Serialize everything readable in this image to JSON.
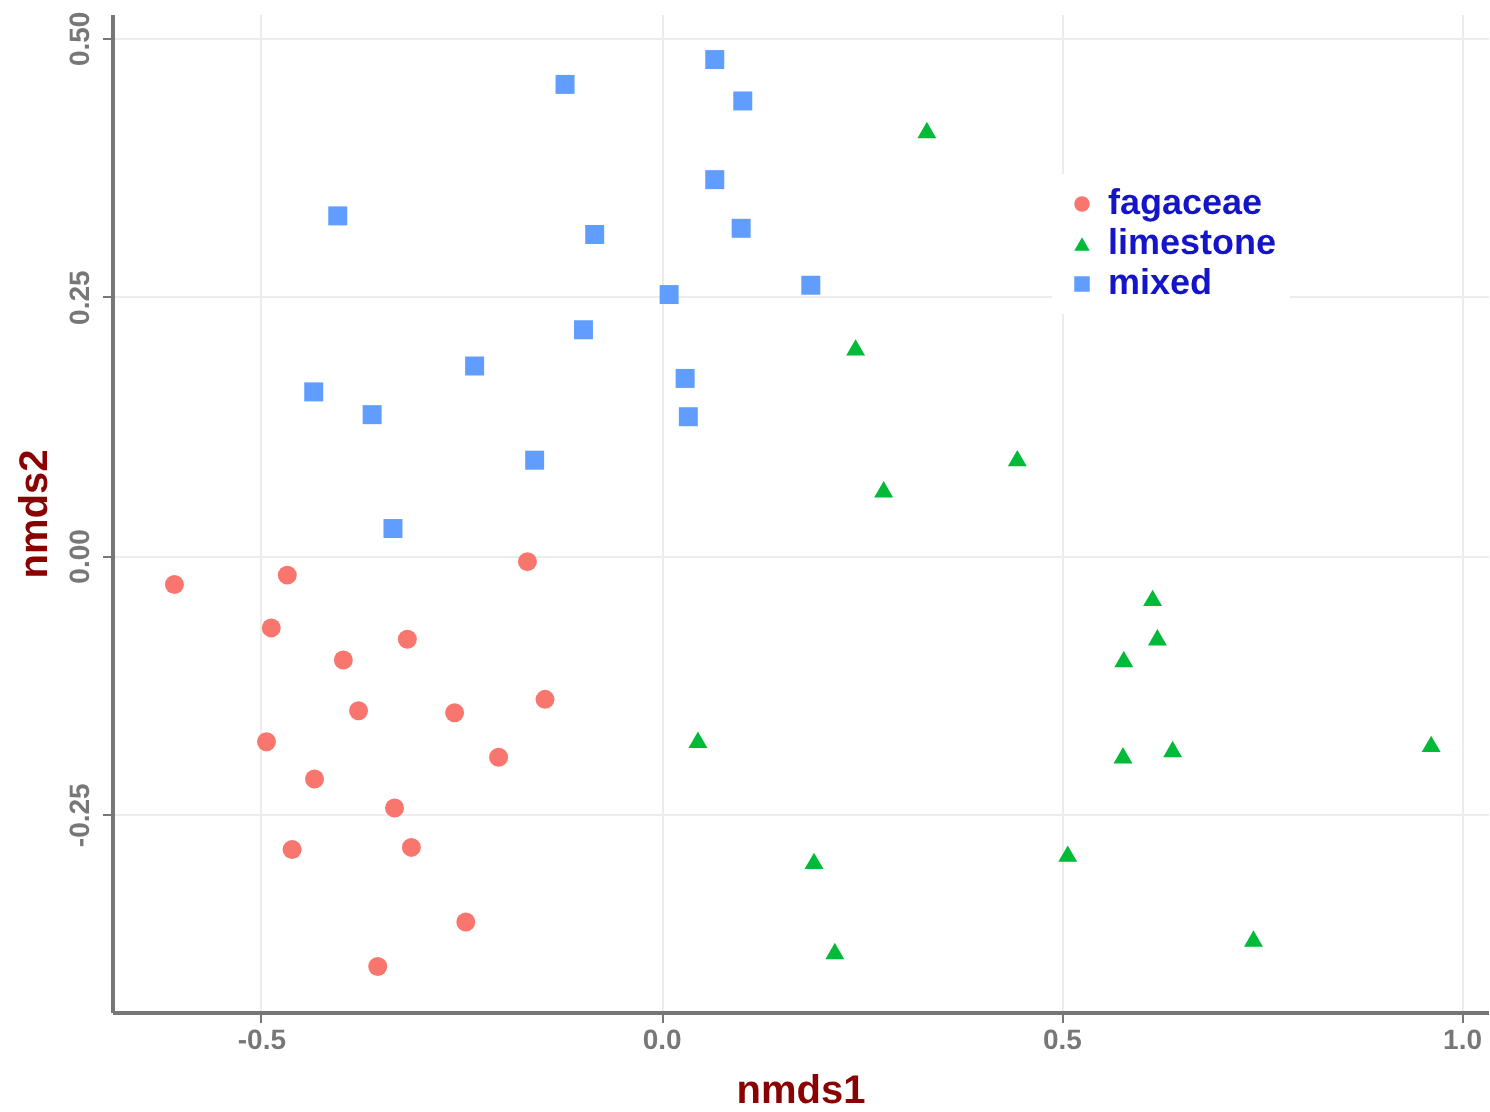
{
  "chart_data": {
    "type": "scatter",
    "xlabel": "nmds1",
    "ylabel": "nmds2",
    "xlim": [
      -0.686,
      1.033
    ],
    "ylim": [
      -0.441,
      0.523
    ],
    "xticks": [
      {
        "value": -0.5,
        "label": "-0.5"
      },
      {
        "value": 0,
        "label": "0.0"
      },
      {
        "value": 0.5,
        "label": "0.5"
      },
      {
        "value": 1,
        "label": "1.0"
      }
    ],
    "yticks": [
      {
        "value": -0.25,
        "label": "-0.25"
      },
      {
        "value": 0,
        "label": "0.00"
      },
      {
        "value": 0.25,
        "label": "0.25"
      },
      {
        "value": 0.5,
        "label": "0.50"
      }
    ],
    "grid": true,
    "legend": "top right",
    "series": [
      {
        "name": "fagaceae",
        "color": "#f8766d",
        "marker": "circle",
        "x": [
          -0.608,
          -0.467,
          -0.167,
          -0.487,
          -0.317,
          -0.397,
          -0.378,
          -0.258,
          -0.145,
          -0.493,
          -0.203,
          -0.433,
          -0.333,
          -0.461,
          -0.312,
          -0.244,
          -0.354
        ],
        "values": [
          -0.028,
          -0.019,
          -0.006,
          -0.07,
          -0.081,
          -0.101,
          -0.15,
          -0.152,
          -0.139,
          -0.18,
          -0.195,
          -0.216,
          -0.244,
          -0.284,
          -0.282,
          -0.354,
          -0.397
        ]
      },
      {
        "name": "limestone",
        "color": "#00ba38",
        "marker": "triangle",
        "x": [
          0.332,
          0.243,
          0.445,
          0.278,
          0.614,
          0.62,
          0.578,
          0.577,
          0.639,
          0.962,
          0.191,
          0.508,
          0.217,
          0.74,
          0.046
        ],
        "values": [
          0.411,
          0.201,
          0.094,
          0.064,
          -0.041,
          -0.079,
          -0.1,
          -0.193,
          -0.187,
          -0.182,
          -0.295,
          -0.288,
          -0.382,
          -0.37,
          -0.178
        ]
      },
      {
        "name": "mixed",
        "color": "#619cff",
        "marker": "square",
        "x": [
          0.067,
          -0.12,
          0.102,
          0.067,
          -0.404,
          -0.083,
          0.1,
          0.01,
          -0.097,
          -0.233,
          0.03,
          -0.434,
          -0.361,
          0.034,
          -0.158,
          -0.335,
          0.187
        ],
        "values": [
          0.479,
          0.455,
          0.439,
          0.363,
          0.328,
          0.31,
          0.316,
          0.252,
          0.218,
          0.183,
          0.171,
          0.158,
          0.136,
          0.134,
          0.092,
          0.026,
          0.261
        ]
      }
    ]
  }
}
